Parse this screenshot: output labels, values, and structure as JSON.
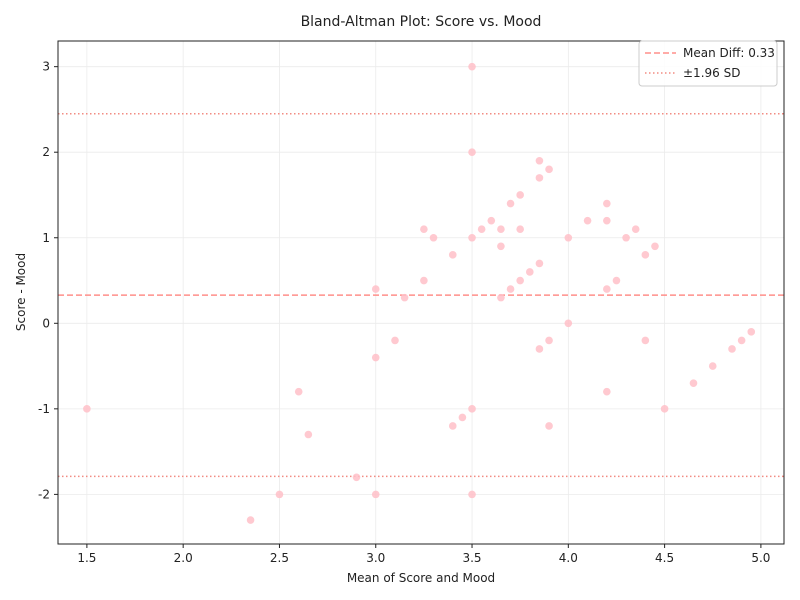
{
  "chart_data": {
    "type": "scatter",
    "title": "Bland-Altman Plot: Score vs. Mood",
    "xlabel": "Mean of Score and Mood",
    "ylabel": "Score - Mood",
    "xlim": [
      1.35,
      5.12
    ],
    "ylim": [
      -2.58,
      3.3
    ],
    "xticks": [
      "1.5",
      "2.0",
      "2.5",
      "3.0",
      "3.5",
      "4.0",
      "4.5",
      "5.0"
    ],
    "yticks": [
      "-2",
      "-1",
      "0",
      "1",
      "2",
      "3"
    ],
    "grid": true,
    "legend_position": "top-right",
    "mean_diff": 0.33,
    "upper_loa": 2.45,
    "lower_loa": -1.79,
    "legend": [
      {
        "label": "Mean Diff: 0.33",
        "style": "dashed"
      },
      {
        "label": "±1.96 SD",
        "style": "dotted"
      }
    ],
    "colors": {
      "points": "#ffc0c8",
      "mean_line": "#ff8f8a",
      "sd_line": "#f28b82"
    },
    "points": [
      {
        "x": 1.5,
        "y": -1.0
      },
      {
        "x": 2.35,
        "y": -2.3
      },
      {
        "x": 2.5,
        "y": -2.0
      },
      {
        "x": 2.6,
        "y": -0.8
      },
      {
        "x": 2.65,
        "y": -1.3
      },
      {
        "x": 2.9,
        "y": -1.8
      },
      {
        "x": 3.0,
        "y": -2.0
      },
      {
        "x": 3.0,
        "y": -0.4
      },
      {
        "x": 3.0,
        "y": 0.4
      },
      {
        "x": 3.1,
        "y": -0.2
      },
      {
        "x": 3.15,
        "y": 0.3
      },
      {
        "x": 3.25,
        "y": 1.1
      },
      {
        "x": 3.25,
        "y": 0.5
      },
      {
        "x": 3.3,
        "y": 1.0
      },
      {
        "x": 3.4,
        "y": 0.8
      },
      {
        "x": 3.4,
        "y": -1.2
      },
      {
        "x": 3.45,
        "y": -1.1
      },
      {
        "x": 3.5,
        "y": 3.0
      },
      {
        "x": 3.5,
        "y": 2.0
      },
      {
        "x": 3.5,
        "y": 1.0
      },
      {
        "x": 3.5,
        "y": -1.0
      },
      {
        "x": 3.5,
        "y": -2.0
      },
      {
        "x": 3.55,
        "y": 1.1
      },
      {
        "x": 3.6,
        "y": 1.2
      },
      {
        "x": 3.65,
        "y": 1.1
      },
      {
        "x": 3.65,
        "y": 0.9
      },
      {
        "x": 3.65,
        "y": 0.3
      },
      {
        "x": 3.7,
        "y": 1.4
      },
      {
        "x": 3.7,
        "y": 0.4
      },
      {
        "x": 3.75,
        "y": 1.5
      },
      {
        "x": 3.75,
        "y": 1.1
      },
      {
        "x": 3.75,
        "y": 0.5
      },
      {
        "x": 3.8,
        "y": 0.6
      },
      {
        "x": 3.85,
        "y": 1.9
      },
      {
        "x": 3.85,
        "y": 1.7
      },
      {
        "x": 3.85,
        "y": 0.7
      },
      {
        "x": 3.85,
        "y": -0.3
      },
      {
        "x": 3.9,
        "y": 1.8
      },
      {
        "x": 3.9,
        "y": -0.2
      },
      {
        "x": 3.9,
        "y": -1.2
      },
      {
        "x": 4.0,
        "y": 1.0
      },
      {
        "x": 4.0,
        "y": 0.0
      },
      {
        "x": 4.1,
        "y": 1.2
      },
      {
        "x": 4.2,
        "y": 1.4
      },
      {
        "x": 4.2,
        "y": 1.2
      },
      {
        "x": 4.2,
        "y": 0.4
      },
      {
        "x": 4.2,
        "y": -0.8
      },
      {
        "x": 4.25,
        "y": 0.5
      },
      {
        "x": 4.3,
        "y": 1.0
      },
      {
        "x": 4.35,
        "y": 1.1
      },
      {
        "x": 4.4,
        "y": 0.8
      },
      {
        "x": 4.4,
        "y": -0.2
      },
      {
        "x": 4.45,
        "y": 0.9
      },
      {
        "x": 4.5,
        "y": -1.0
      },
      {
        "x": 4.65,
        "y": -0.7
      },
      {
        "x": 4.75,
        "y": -0.5
      },
      {
        "x": 4.85,
        "y": -0.3
      },
      {
        "x": 4.9,
        "y": -0.2
      },
      {
        "x": 4.95,
        "y": -0.1
      }
    ]
  }
}
